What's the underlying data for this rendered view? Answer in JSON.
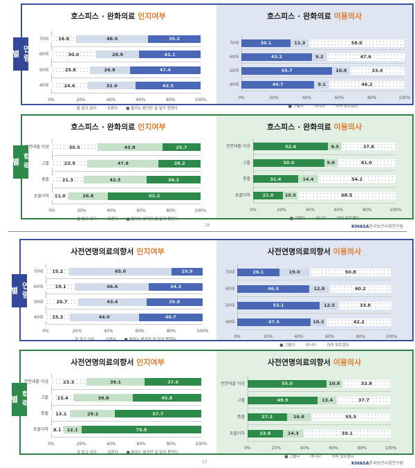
{
  "pages": [
    {
      "page_number": "16",
      "logo": {
        "brand": "KIHASA",
        "name": "한국보건사회연구원"
      }
    },
    {
      "page_number": "17",
      "logo": {
        "brand": "KIHASA",
        "name": "한국보건사회연구원"
      }
    }
  ],
  "side_tabs": {
    "age": "연령별",
    "edu": "학력별"
  },
  "legends": {
    "awareness": [
      "잘 알고 있다",
      "모른다",
      "들어는 봤지만 잘 알지 못한다"
    ],
    "intent": [
      "그렇다",
      "아니다",
      "아직 모르겠다"
    ]
  },
  "x_ticks": [
    "0%",
    "20%",
    "40%",
    "60%",
    "80%",
    "100%"
  ],
  "chart_data": [
    {
      "type": "bar",
      "stacked": true,
      "orientation": "horizontal",
      "title": "호스피스 · 완화의료 인지여부",
      "title_main": "호스피스 · 완화의료",
      "title_highlight": "인지여부",
      "group": "연령별",
      "categories": [
        "70대",
        "60대",
        "50대",
        "40대"
      ],
      "series": [
        {
          "name": "잘 알고 있다",
          "values": [
            16.8,
            30.0,
            25.8,
            24.6
          ]
        },
        {
          "name": "모른다",
          "values": [
            48.0,
            28.9,
            26.8,
            32.0
          ]
        },
        {
          "name": "들어는 봤지만 잘 알지 못한다",
          "values": [
            35.2,
            41.1,
            47.4,
            43.5
          ]
        }
      ],
      "xlim": [
        0,
        100
      ],
      "xlabel": "",
      "ylabel": "",
      "legend_position": "bottom"
    },
    {
      "type": "bar",
      "stacked": true,
      "orientation": "horizontal",
      "title": "호스피스 · 완화의료 이용의사",
      "title_main": "호스피스 · 완화의료",
      "title_highlight": "이용의사",
      "group": "연령별",
      "categories": [
        "70대",
        "60대",
        "50대",
        "40대"
      ],
      "series": [
        {
          "name": "그렇다",
          "values": [
            30.1,
            43.2,
            55.7,
            44.7
          ]
        },
        {
          "name": "아니다",
          "values": [
            11.3,
            9.2,
            10.9,
            9.1
          ]
        },
        {
          "name": "아직 모르겠다",
          "values": [
            58.6,
            47.6,
            33.4,
            46.2
          ]
        }
      ],
      "xlim": [
        0,
        100
      ],
      "xlabel": "",
      "ylabel": "",
      "legend_position": "bottom"
    },
    {
      "type": "bar",
      "stacked": true,
      "orientation": "horizontal",
      "title": "호스피스 · 완화의료 인지여부",
      "title_main": "호스피스 · 완화의료",
      "title_highlight": "인지여부",
      "group": "학력별",
      "categories": [
        "전문대졸 이상",
        "고졸",
        "중졸",
        "초졸이하"
      ],
      "series": [
        {
          "name": "잘 알고 있다",
          "values": [
            30.5,
            23.9,
            21.3,
            11.0
          ]
        },
        {
          "name": "모른다",
          "values": [
            43.8,
            47.8,
            42.5,
            26.8
          ]
        },
        {
          "name": "들어는 봤지만 잘 알지 못한다",
          "values": [
            25.7,
            28.2,
            36.2,
            62.2
          ]
        }
      ],
      "xlim": [
        0,
        100
      ],
      "xlabel": "",
      "ylabel": "",
      "legend_position": "bottom"
    },
    {
      "type": "bar",
      "stacked": true,
      "orientation": "horizontal",
      "title": "호스피스 · 완화의료 이용의사",
      "title_main": "호스피스 · 완화의료",
      "title_highlight": "이용의사",
      "group": "학력별",
      "categories": [
        "전문대졸 이상",
        "고졸",
        "중졸",
        "초졸이하"
      ],
      "series": [
        {
          "name": "그렇다",
          "values": [
            52.6,
            50.0,
            31.4,
            21.0
          ]
        },
        {
          "name": "아니다",
          "values": [
            9.5,
            9.0,
            14.4,
            10.5
          ]
        },
        {
          "name": "아직 모르겠다",
          "values": [
            37.8,
            41.0,
            54.2,
            68.5
          ]
        }
      ],
      "xlim": [
        0,
        100
      ],
      "xlabel": "",
      "ylabel": "",
      "legend_position": "bottom"
    },
    {
      "type": "bar",
      "stacked": true,
      "orientation": "horizontal",
      "title": "사전연명의료의향서 인지여부",
      "title_main": "사전연명의료의향서",
      "title_highlight": "인지여부",
      "group": "연령별",
      "categories": [
        "70대",
        "60대",
        "50대",
        "40대"
      ],
      "series": [
        {
          "name": "잘 알고 있다",
          "values": [
            15.2,
            19.1,
            20.7,
            15.3
          ]
        },
        {
          "name": "모른다",
          "values": [
            65.0,
            46.6,
            43.4,
            44.0
          ]
        },
        {
          "name": "들어는 봤지만 잘 알지 못한다",
          "values": [
            19.9,
            34.3,
            35.8,
            40.7
          ]
        }
      ],
      "xlim": [
        0,
        100
      ],
      "xlabel": "",
      "ylabel": "",
      "legend_position": "bottom"
    },
    {
      "type": "bar",
      "stacked": true,
      "orientation": "horizontal",
      "title": "사전연명의료의향서 이용의사",
      "title_main": "사전연명의료의향서",
      "title_highlight": "이용의사",
      "group": "연령별",
      "categories": [
        "70대",
        "60대",
        "50대",
        "40대"
      ],
      "series": [
        {
          "name": "그렇다",
          "values": [
            26.1,
            46.5,
            53.1,
            47.5
          ]
        },
        {
          "name": "아니다",
          "values": [
            19.0,
            12.8,
            12.5,
            10.3
          ]
        },
        {
          "name": "아직 모르겠다",
          "values": [
            50.8,
            40.2,
            33.8,
            42.2
          ]
        }
      ],
      "xlim": [
        0,
        100
      ],
      "xlabel": "",
      "ylabel": "",
      "legend_position": "bottom"
    },
    {
      "type": "bar",
      "stacked": true,
      "orientation": "horizontal",
      "title": "사전연명의료의향서 인지여부",
      "title_main": "사전연명의료의향서",
      "title_highlight": "인지여부",
      "group": "학력별",
      "categories": [
        "전문대졸 이상",
        "고졸",
        "중졸",
        "초졸이하"
      ],
      "series": [
        {
          "name": "잘 알고 있다",
          "values": [
            23.3,
            15.4,
            13.1,
            8.1
          ]
        },
        {
          "name": "모른다",
          "values": [
            39.1,
            38.8,
            29.2,
            12.1
          ]
        },
        {
          "name": "들어는 봤지만 잘 알지 못한다",
          "values": [
            37.6,
            45.8,
            57.7,
            79.8
          ]
        }
      ],
      "xlim": [
        0,
        100
      ],
      "xlabel": "",
      "ylabel": "",
      "legend_position": "bottom"
    },
    {
      "type": "bar",
      "stacked": true,
      "orientation": "horizontal",
      "title": "사전연명의료의향서 이용의사",
      "title_main": "사전연명의료의향서",
      "title_highlight": "이용의사",
      "group": "학력별",
      "categories": [
        "전문대졸 이상",
        "고졸",
        "중졸",
        "초졸이하"
      ],
      "series": [
        {
          "name": "그렇다",
          "values": [
            55.0,
            48.9,
            27.2,
            23.8
          ]
        },
        {
          "name": "아니다",
          "values": [
            10.8,
            13.4,
            16.8,
            14.3
          ]
        },
        {
          "name": "아직 모르겠다",
          "values": [
            33.8,
            37.7,
            55.5,
            59.1
          ]
        }
      ],
      "xlim": [
        0,
        100
      ],
      "xlabel": "",
      "ylabel": "",
      "legend_position": "bottom"
    }
  ]
}
